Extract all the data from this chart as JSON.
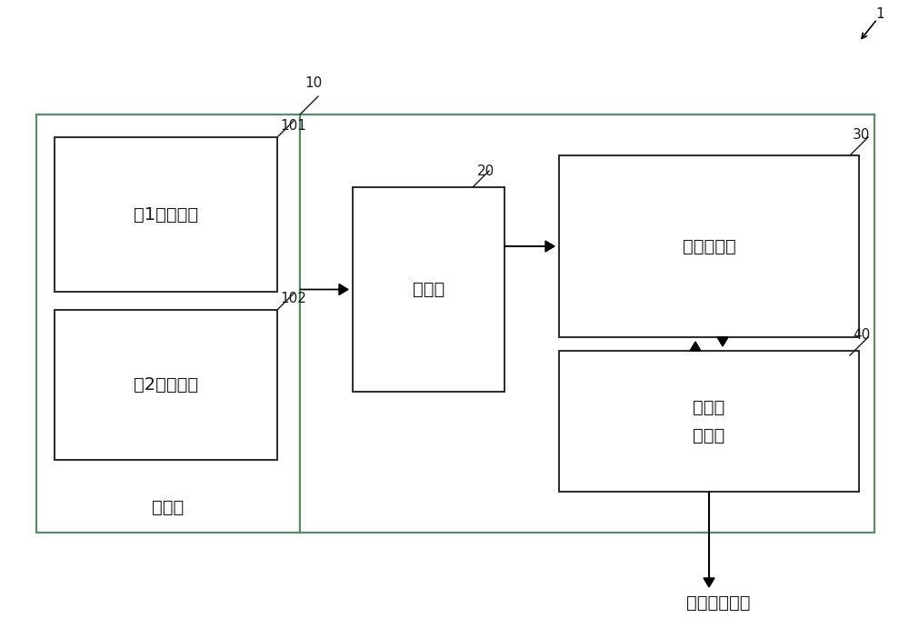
{
  "bg_color": "#ffffff",
  "text_color": "#1a1a1a",
  "green_border": "#5a8a6a",
  "dark_border": "#2a2a2a",
  "fig_width": 10.0,
  "fig_height": 6.91,
  "label_1": "1",
  "label_10": "10",
  "label_101": "101",
  "label_102": "102",
  "label_20": "20",
  "label_30": "30",
  "label_40": "40",
  "box_touguangbu_label": "投光部",
  "box_101_label": "第1发光元件",
  "box_102_label": "第2发光元件",
  "box_shexiangbu_label": "摄像部",
  "box_chlibu_label": "摄像处理部",
  "box_jiqiren_label": "机器人\n控制部",
  "bottom_label": "对机器人控制",
  "font_size_main": 14,
  "font_size_num": 11,
  "lw_green": 1.6,
  "lw_inner": 1.4
}
